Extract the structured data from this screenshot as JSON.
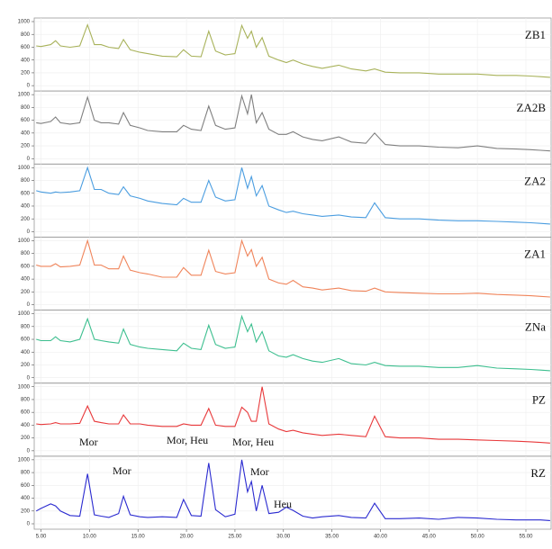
{
  "chart_data": {
    "type": "line",
    "x": [
      4.5,
      5,
      6,
      6.5,
      7,
      8,
      9,
      9.8,
      10.5,
      11.2,
      12,
      13,
      13.5,
      14.2,
      15.2,
      16,
      17.5,
      19,
      19.7,
      20.5,
      21.5,
      22.3,
      23,
      24,
      25,
      25.7,
      26.3,
      26.7,
      27.2,
      27.8,
      28.5,
      29.5,
      30.3,
      31,
      32,
      33,
      34,
      35.7,
      37,
      38.5,
      39.4,
      40.5,
      42,
      44,
      46,
      48,
      50,
      52,
      54,
      55.5,
      56.5,
      57.5
    ],
    "series": [
      {
        "name": "ZB1",
        "color": "#a8b25a",
        "values": [
          620,
          610,
          640,
          700,
          620,
          600,
          620,
          950,
          640,
          640,
          600,
          580,
          720,
          560,
          520,
          500,
          460,
          450,
          560,
          460,
          450,
          850,
          540,
          480,
          500,
          940,
          740,
          850,
          600,
          750,
          460,
          400,
          360,
          400,
          340,
          300,
          270,
          320,
          260,
          230,
          260,
          210,
          200,
          200,
          180,
          180,
          180,
          160,
          160,
          150,
          140,
          130
        ]
      },
      {
        "name": "ZA2B",
        "color": "#7f7f7f",
        "values": [
          560,
          550,
          580,
          650,
          560,
          540,
          560,
          960,
          600,
          560,
          560,
          540,
          720,
          520,
          480,
          440,
          420,
          420,
          520,
          460,
          440,
          820,
          520,
          460,
          480,
          980,
          700,
          1000,
          560,
          720,
          460,
          380,
          380,
          420,
          340,
          300,
          280,
          340,
          260,
          240,
          400,
          220,
          200,
          200,
          180,
          170,
          200,
          160,
          150,
          140,
          130,
          120
        ]
      },
      {
        "name": "ZA2",
        "color": "#4a9de0",
        "values": [
          640,
          620,
          600,
          620,
          610,
          620,
          640,
          1000,
          660,
          660,
          600,
          580,
          700,
          560,
          520,
          480,
          440,
          420,
          520,
          460,
          460,
          800,
          540,
          480,
          500,
          1000,
          680,
          860,
          560,
          720,
          400,
          340,
          300,
          320,
          280,
          260,
          240,
          260,
          230,
          220,
          450,
          220,
          200,
          200,
          180,
          170,
          170,
          160,
          150,
          140,
          130,
          120
        ]
      },
      {
        "name": "ZA1",
        "color": "#f0845a",
        "values": [
          620,
          600,
          600,
          640,
          590,
          600,
          620,
          1000,
          620,
          620,
          560,
          560,
          760,
          540,
          500,
          480,
          430,
          430,
          580,
          460,
          460,
          850,
          520,
          480,
          500,
          1000,
          760,
          860,
          600,
          740,
          400,
          340,
          320,
          380,
          280,
          260,
          230,
          260,
          220,
          210,
          260,
          200,
          190,
          180,
          170,
          170,
          180,
          160,
          150,
          140,
          130,
          120
        ]
      },
      {
        "name": "ZNa",
        "color": "#3dbf8f",
        "values": [
          600,
          580,
          580,
          640,
          580,
          560,
          600,
          920,
          600,
          580,
          560,
          540,
          760,
          520,
          480,
          460,
          440,
          420,
          540,
          460,
          440,
          820,
          520,
          460,
          480,
          960,
          720,
          840,
          560,
          720,
          420,
          340,
          320,
          360,
          300,
          260,
          240,
          300,
          220,
          200,
          240,
          190,
          180,
          180,
          160,
          160,
          190,
          150,
          140,
          130,
          120,
          110
        ]
      },
      {
        "name": "PZ",
        "color": "#e8383a",
        "values": [
          420,
          410,
          420,
          440,
          420,
          420,
          430,
          700,
          460,
          440,
          420,
          420,
          560,
          420,
          420,
          400,
          380,
          380,
          420,
          400,
          400,
          660,
          400,
          380,
          380,
          680,
          600,
          460,
          460,
          1000,
          420,
          340,
          300,
          320,
          280,
          260,
          240,
          260,
          240,
          220,
          540,
          220,
          200,
          200,
          180,
          180,
          170,
          160,
          150,
          140,
          130,
          120
        ]
      },
      {
        "name": "RZ",
        "color": "#2a2ad0",
        "values": [
          200,
          240,
          310,
          280,
          200,
          130,
          120,
          780,
          140,
          120,
          100,
          160,
          430,
          140,
          110,
          100,
          110,
          100,
          380,
          130,
          120,
          950,
          220,
          110,
          150,
          1000,
          500,
          660,
          200,
          600,
          160,
          180,
          260,
          210,
          120,
          90,
          110,
          130,
          100,
          90,
          320,
          80,
          80,
          90,
          70,
          100,
          90,
          70,
          60,
          60,
          60,
          50
        ]
      }
    ],
    "ylim": [
      0,
      1000
    ],
    "yticks": [
      0,
      200,
      400,
      600,
      800,
      1000
    ],
    "xlim": [
      4.3,
      57.6
    ],
    "xticks": [
      {
        "value": 5,
        "label": "5.00"
      },
      {
        "value": 10,
        "label": "10.00"
      },
      {
        "value": 15,
        "label": "15.00"
      },
      {
        "value": 20,
        "label": "20.00"
      },
      {
        "value": 25,
        "label": "25.00"
      },
      {
        "value": 30,
        "label": "30.00"
      },
      {
        "value": 35,
        "label": "35.00"
      },
      {
        "value": 40,
        "label": "40.00"
      },
      {
        "value": 45,
        "label": "45.00"
      },
      {
        "value": 50,
        "label": "50.00"
      },
      {
        "value": 55,
        "label": "55.00"
      }
    ],
    "grid": true,
    "annotations": [
      "Mor",
      "Mor",
      "Mor, Heu",
      "Mor, Heu",
      "Mor",
      "Heu"
    ]
  }
}
